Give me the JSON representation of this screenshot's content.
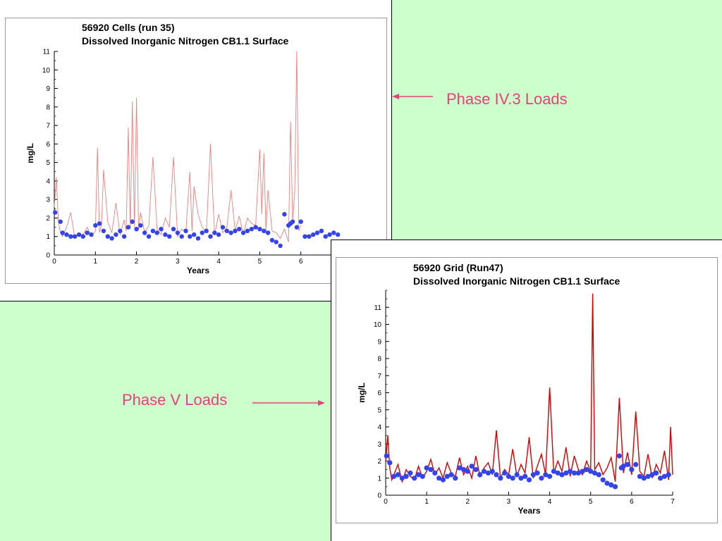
{
  "colors": {
    "background": "#ccffcc",
    "annotation": "#e8407a",
    "series_line_top": "#e88080",
    "series_line_bottom": "#d40000",
    "points": "#3344ee"
  },
  "annotations": {
    "top": "Phase IV.3 Loads",
    "bottom": "Phase V Loads"
  },
  "chart_data": [
    {
      "type": "line",
      "title": "56920 Cells (run 35)",
      "subtitle": "Dissolved Inorganic Nitrogen CB1.1 Surface",
      "xlabel": "Years",
      "ylabel": "mg/L",
      "xlim": [
        0,
        7
      ],
      "ylim": [
        0,
        11
      ],
      "xticks": [
        0,
        1,
        2,
        3,
        4,
        5,
        6
      ],
      "yticks": [
        0,
        1,
        2,
        3,
        4,
        5,
        6,
        7,
        8,
        9,
        10,
        11
      ],
      "series": [
        {
          "kind": "line",
          "x": [
            0,
            0.05,
            0.1,
            0.15,
            0.2,
            0.3,
            0.4,
            0.5,
            0.6,
            0.7,
            0.8,
            0.9,
            1.0,
            1.05,
            1.1,
            1.15,
            1.2,
            1.3,
            1.4,
            1.5,
            1.6,
            1.7,
            1.75,
            1.8,
            1.85,
            1.9,
            1.95,
            2.0,
            2.05,
            2.1,
            2.2,
            2.3,
            2.4,
            2.5,
            2.6,
            2.7,
            2.8,
            2.9,
            3.0,
            3.1,
            3.2,
            3.3,
            3.35,
            3.4,
            3.5,
            3.6,
            3.7,
            3.8,
            3.9,
            4.0,
            4.1,
            4.2,
            4.3,
            4.4,
            4.5,
            4.6,
            4.7,
            4.8,
            4.9,
            5.0,
            5.05,
            5.1,
            5.15,
            5.2,
            5.3,
            5.4,
            5.5,
            5.6,
            5.7,
            5.75,
            5.8,
            5.85,
            5.9,
            5.95,
            6.0
          ],
          "y": [
            2.6,
            4.2,
            1.8,
            1.2,
            1.0,
            1.5,
            2.3,
            0.9,
            1.2,
            1.1,
            1.5,
            1.0,
            1.3,
            5.8,
            1.2,
            1.6,
            4.6,
            1.8,
            1.2,
            2.8,
            1.1,
            1.9,
            1.3,
            6.9,
            1.4,
            8.3,
            1.5,
            8.5,
            1.4,
            2.3,
            1.2,
            1.6,
            5.3,
            1.4,
            1.1,
            2.0,
            1.5,
            5.3,
            1.0,
            1.4,
            1.2,
            4.5,
            1.3,
            3.7,
            2.2,
            1.5,
            1.2,
            6.0,
            1.1,
            2.2,
            1.2,
            1.5,
            3.5,
            1.3,
            2.1,
            1.1,
            2.0,
            1.7,
            1.6,
            5.7,
            2.2,
            5.5,
            1.3,
            3.5,
            1.3,
            1.2,
            0.9,
            1.4,
            0.7,
            7.2,
            1.8,
            3.4,
            11.0,
            1.3,
            1.6
          ]
        },
        {
          "kind": "scatter",
          "x": [
            0.02,
            0.15,
            0.2,
            0.3,
            0.4,
            0.5,
            0.6,
            0.7,
            0.8,
            0.9,
            1.0,
            1.1,
            1.2,
            1.3,
            1.4,
            1.5,
            1.6,
            1.7,
            1.8,
            1.9,
            2.0,
            2.1,
            2.2,
            2.3,
            2.4,
            2.5,
            2.6,
            2.7,
            2.8,
            2.9,
            3.0,
            3.1,
            3.2,
            3.3,
            3.4,
            3.5,
            3.6,
            3.7,
            3.8,
            3.9,
            4.0,
            4.1,
            4.2,
            4.3,
            4.4,
            4.5,
            4.6,
            4.7,
            4.8,
            4.9,
            5.0,
            5.1,
            5.2,
            5.3,
            5.4,
            5.5,
            5.6,
            5.7,
            5.75,
            5.8,
            5.9,
            6.0,
            6.1,
            6.2,
            6.3,
            6.4,
            6.5,
            6.6,
            6.7,
            6.8,
            6.9
          ],
          "y": [
            2.3,
            1.8,
            1.2,
            1.1,
            1.0,
            1.0,
            1.1,
            1.0,
            1.2,
            1.1,
            1.6,
            1.7,
            1.3,
            1.0,
            0.9,
            1.1,
            1.3,
            1.0,
            1.5,
            1.8,
            1.4,
            1.6,
            1.2,
            1.0,
            1.3,
            1.2,
            1.4,
            1.1,
            1.0,
            1.4,
            1.2,
            1.0,
            1.3,
            1.0,
            1.1,
            0.9,
            1.2,
            1.3,
            1.0,
            1.2,
            1.1,
            1.5,
            1.3,
            1.2,
            1.3,
            1.4,
            1.2,
            1.3,
            1.4,
            1.5,
            1.4,
            1.3,
            1.2,
            0.8,
            0.7,
            0.5,
            2.2,
            1.6,
            1.7,
            1.8,
            1.5,
            1.8,
            1.0,
            1.0,
            1.1,
            1.2,
            1.3,
            1.0,
            1.1,
            1.2,
            1.1
          ]
        }
      ]
    },
    {
      "type": "line",
      "title": "56920 Grid (Run47)",
      "subtitle": "Dissolved Inorganic Nitrogen CB1.1 Surface",
      "xlabel": "Years",
      "ylabel": "mg/L",
      "xlim": [
        0,
        7
      ],
      "ylim": [
        0,
        12
      ],
      "xticks": [
        0,
        1,
        2,
        3,
        4,
        5,
        6,
        7
      ],
      "yticks": [
        0,
        1,
        2,
        3,
        4,
        5,
        6,
        7,
        8,
        9,
        10,
        11
      ],
      "series": [
        {
          "kind": "line",
          "x": [
            0,
            0.05,
            0.1,
            0.15,
            0.2,
            0.3,
            0.4,
            0.5,
            0.6,
            0.7,
            0.8,
            0.9,
            1.0,
            1.1,
            1.2,
            1.3,
            1.4,
            1.5,
            1.6,
            1.7,
            1.8,
            1.9,
            2.0,
            2.1,
            2.2,
            2.3,
            2.4,
            2.5,
            2.6,
            2.7,
            2.8,
            2.9,
            3.0,
            3.1,
            3.2,
            3.3,
            3.4,
            3.5,
            3.6,
            3.7,
            3.8,
            3.9,
            4.0,
            4.1,
            4.2,
            4.3,
            4.4,
            4.5,
            4.6,
            4.7,
            4.8,
            4.9,
            5.0,
            5.05,
            5.1,
            5.2,
            5.3,
            5.4,
            5.5,
            5.6,
            5.7,
            5.8,
            5.9,
            6.0,
            6.1,
            6.2,
            6.3,
            6.4,
            6.5,
            6.6,
            6.7,
            6.8,
            6.9,
            6.95,
            7.0
          ],
          "y": [
            2.0,
            3.5,
            1.6,
            0.9,
            1.2,
            1.8,
            0.8,
            1.5,
            1.1,
            0.9,
            1.7,
            1.0,
            1.4,
            2.1,
            1.2,
            1.6,
            1.0,
            1.9,
            1.3,
            1.1,
            2.2,
            1.2,
            1.7,
            1.0,
            2.3,
            1.1,
            1.6,
            1.9,
            1.2,
            3.8,
            1.0,
            1.5,
            1.2,
            2.7,
            1.1,
            1.8,
            1.3,
            3.4,
            1.0,
            1.7,
            2.4,
            1.2,
            6.3,
            1.3,
            2.0,
            1.4,
            2.8,
            1.1,
            2.3,
            1.5,
            1.2,
            2.0,
            1.4,
            11.8,
            1.5,
            1.9,
            1.2,
            1.6,
            2.2,
            0.8,
            5.7,
            1.3,
            2.5,
            1.2,
            4.9,
            1.4,
            1.1,
            2.4,
            1.0,
            1.8,
            1.3,
            2.6,
            0.9,
            4.0,
            1.2
          ]
        },
        {
          "kind": "scatter",
          "x": [
            0.02,
            0.1,
            0.2,
            0.3,
            0.4,
            0.5,
            0.6,
            0.7,
            0.8,
            0.9,
            1.0,
            1.1,
            1.2,
            1.3,
            1.4,
            1.5,
            1.6,
            1.7,
            1.8,
            1.9,
            2.0,
            2.1,
            2.2,
            2.3,
            2.4,
            2.5,
            2.6,
            2.7,
            2.8,
            2.9,
            3.0,
            3.1,
            3.2,
            3.3,
            3.4,
            3.5,
            3.6,
            3.7,
            3.8,
            3.9,
            4.0,
            4.1,
            4.2,
            4.3,
            4.4,
            4.5,
            4.6,
            4.7,
            4.8,
            4.9,
            5.0,
            5.1,
            5.2,
            5.3,
            5.4,
            5.5,
            5.6,
            5.7,
            5.75,
            5.8,
            5.9,
            6.0,
            6.1,
            6.2,
            6.3,
            6.4,
            6.5,
            6.6,
            6.7,
            6.8,
            6.9
          ],
          "y": [
            2.3,
            1.9,
            1.1,
            1.2,
            1.0,
            1.1,
            1.3,
            1.0,
            1.2,
            1.1,
            1.6,
            1.5,
            1.3,
            1.0,
            0.9,
            1.1,
            1.2,
            1.0,
            1.6,
            1.5,
            1.4,
            1.7,
            1.5,
            1.2,
            1.4,
            1.3,
            1.4,
            1.2,
            1.0,
            1.3,
            1.1,
            1.0,
            1.2,
            1.0,
            1.1,
            0.9,
            1.2,
            1.3,
            1.0,
            1.2,
            1.1,
            1.4,
            1.3,
            1.2,
            1.3,
            1.4,
            1.3,
            1.3,
            1.4,
            1.5,
            1.4,
            1.3,
            1.2,
            0.9,
            0.7,
            0.6,
            0.5,
            2.3,
            1.6,
            1.7,
            1.8,
            1.5,
            1.8,
            1.1,
            1.0,
            1.1,
            1.2,
            1.3,
            1.0,
            1.1,
            1.2
          ]
        }
      ]
    }
  ]
}
